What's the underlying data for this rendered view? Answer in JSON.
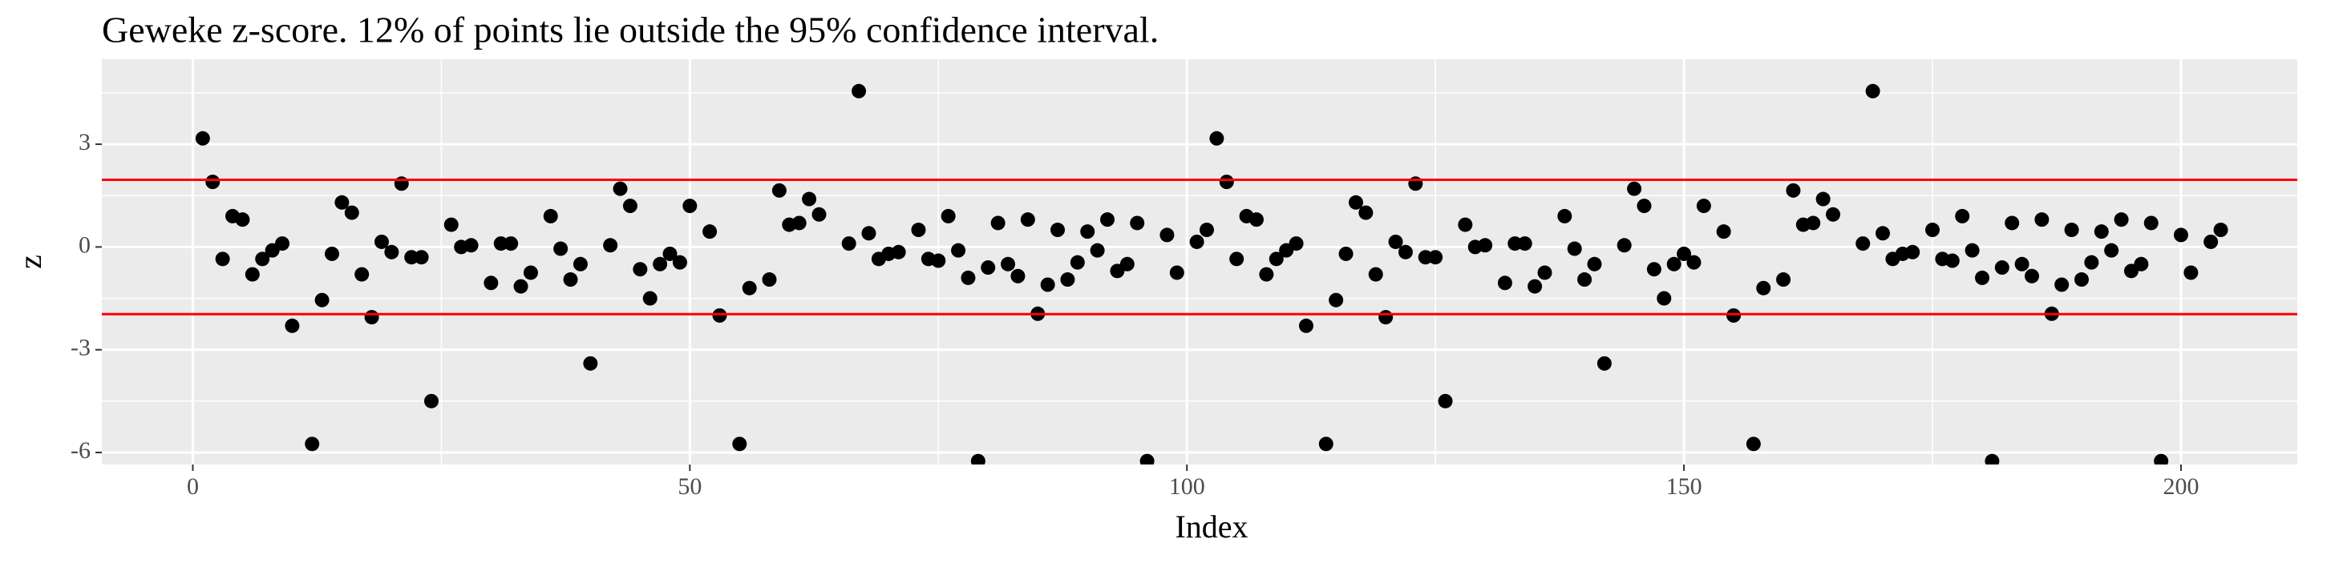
{
  "chart_data": {
    "type": "scatter",
    "title": "Geweke z-score. 12% of points lie outside the 95% confidence interval.",
    "x_label": "Index",
    "y_label": "z",
    "x": [
      1,
      2,
      3,
      4,
      5,
      6,
      7,
      8,
      9,
      10,
      12,
      13,
      14,
      15,
      16,
      17,
      18,
      19,
      20,
      21,
      22,
      23,
      24,
      26,
      27,
      28,
      30,
      31,
      32,
      33,
      34,
      36,
      37,
      38,
      39,
      40,
      42,
      43,
      44,
      45,
      46,
      47,
      48,
      49,
      50,
      52,
      53,
      55,
      56,
      58,
      59,
      60,
      61,
      62,
      63,
      66,
      67,
      68,
      69,
      70,
      71,
      73,
      74,
      75,
      76,
      77,
      78,
      79,
      80,
      81,
      82,
      83,
      84,
      85,
      86,
      87,
      88,
      89,
      90,
      91,
      92,
      93,
      94,
      95,
      96,
      98,
      99,
      101,
      102,
      103,
      104,
      105,
      106,
      107,
      108,
      109,
      110,
      111,
      112,
      114,
      115,
      116,
      117,
      118,
      119,
      120,
      121,
      122,
      123,
      124,
      125,
      126,
      128,
      129,
      130,
      132,
      133,
      134,
      135,
      136,
      138,
      139,
      140,
      141,
      142,
      144,
      145,
      146,
      147,
      148,
      149,
      150,
      151,
      152,
      154,
      155,
      157,
      158,
      160,
      161,
      162,
      163,
      164,
      165,
      168,
      169,
      170,
      171,
      172,
      173,
      175,
      176,
      177,
      178,
      179,
      180,
      181,
      182,
      183,
      184,
      185,
      186,
      187,
      188,
      189,
      190,
      191,
      192,
      193,
      194,
      195,
      196,
      197,
      198,
      200,
      201,
      203,
      204
    ],
    "values": [
      3.17,
      1.9,
      -0.35,
      0.9,
      0.8,
      -0.8,
      -0.35,
      -0.1,
      0.1,
      -2.3,
      -5.75,
      -1.55,
      -0.2,
      1.3,
      1.0,
      -0.8,
      -2.05,
      0.15,
      -0.15,
      1.85,
      -0.3,
      -0.3,
      -4.5,
      0.65,
      0.0,
      0.05,
      -1.05,
      0.1,
      0.1,
      -1.15,
      -0.75,
      0.9,
      -0.05,
      -0.95,
      -0.5,
      -3.4,
      0.05,
      1.7,
      1.2,
      -0.65,
      -1.5,
      -0.5,
      -0.2,
      -0.45,
      1.2,
      0.45,
      -2.0,
      -5.75,
      -1.2,
      -0.95,
      1.65,
      0.65,
      0.7,
      1.4,
      0.95,
      0.1,
      4.55,
      0.4,
      -0.35,
      -0.2,
      -0.15,
      0.5,
      -0.35,
      -0.4,
      0.9,
      -0.1,
      -0.9,
      -6.25,
      -0.6,
      0.7,
      -0.5,
      -0.85,
      0.8,
      -1.95,
      -1.1,
      0.5,
      -0.95,
      -0.45,
      0.45,
      -0.1,
      0.8,
      -0.7,
      -0.5,
      0.7,
      -6.25,
      0.35,
      -0.75,
      0.15,
      0.5,
      3.17,
      1.9,
      -0.35,
      0.9,
      0.8,
      -0.8,
      -0.35,
      -0.1,
      0.1,
      -2.3,
      -5.75,
      -1.55,
      -0.2,
      1.3,
      1.0,
      -0.8,
      -2.05,
      0.15,
      -0.15,
      1.85,
      -0.3,
      -0.3,
      -4.5,
      0.65,
      0.0,
      0.05,
      -1.05,
      0.1,
      0.1,
      -1.15,
      -0.75,
      0.9,
      -0.05,
      -0.95,
      -0.5,
      -3.4,
      0.05,
      1.7,
      1.2,
      -0.65,
      -1.5,
      -0.5,
      -0.2,
      -0.45,
      1.2,
      0.45,
      -2.0,
      -5.75,
      -1.2,
      -0.95,
      1.65,
      0.65,
      0.7,
      1.4,
      0.95,
      0.1,
      4.55,
      0.4,
      -0.35,
      -0.2,
      -0.15,
      0.5,
      -0.35,
      -0.4,
      0.9,
      -0.1,
      -0.9,
      -6.25,
      -0.6,
      0.7,
      -0.5,
      -0.85,
      0.8,
      -1.95,
      -1.1,
      0.5,
      -0.95,
      -0.45,
      0.45,
      -0.1,
      0.8,
      -0.7,
      -0.5,
      0.7,
      -6.25,
      0.35,
      -0.75,
      0.15,
      0.5
    ],
    "color": "#000000",
    "hlines": [
      1.96,
      -1.96
    ],
    "hline_color": "#ff0000",
    "xlim": [
      -9.15,
      211.7
    ],
    "ylim": [
      -6.35,
      5.48
    ],
    "xticks": [
      0,
      50,
      100,
      150,
      200
    ],
    "yticks": [
      -6,
      -3,
      0,
      3
    ],
    "x_minor_ticks": [
      25,
      75,
      125,
      175
    ],
    "y_minor_ticks": [
      -4.5,
      -1.5,
      1.5,
      4.5
    ],
    "grid": true
  }
}
